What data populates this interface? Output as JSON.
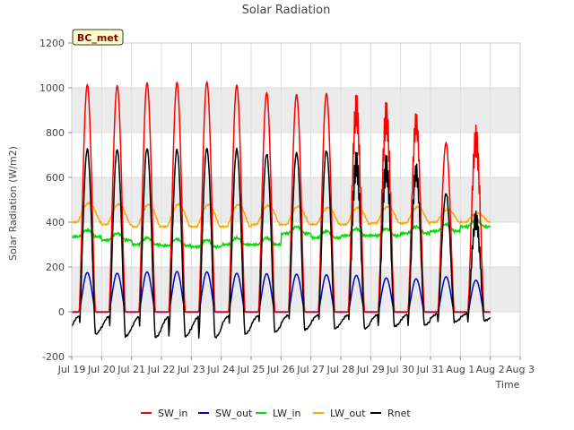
{
  "chart_data": {
    "type": "line",
    "title": "Solar Radiation",
    "xlabel": "Time",
    "ylabel": "Solar Radiation (W/m2)",
    "site_label": "BC_met",
    "ylim": [
      -200,
      1200
    ],
    "xlim_days": [
      0,
      15
    ],
    "y_ticks": [
      -200,
      0,
      200,
      400,
      600,
      800,
      1000,
      1200
    ],
    "x_tick_labels": [
      "Jul 19",
      "Jul 20",
      "Jul 21",
      "Jul 22",
      "Jul 23",
      "Jul 24",
      "Jul 25",
      "Jul 26",
      "Jul 27",
      "Jul 28",
      "Jul 29",
      "Jul 30",
      "Jul 31",
      "Aug 1",
      "Aug 2",
      "Aug 3"
    ],
    "grid": true,
    "legend_position": "bottom",
    "colors": {
      "SW_in": "#ff0000",
      "SW_out": "#0000cc",
      "LW_in": "#00dd00",
      "LW_out": "#ffa500",
      "Rnet": "#000000",
      "band": "#ebebeb",
      "badge_bg": "#ffffcc"
    },
    "series": [
      {
        "name": "SW_in",
        "daily_peak": [
          1015,
          1010,
          1022,
          1025,
          1027,
          1012,
          978,
          970,
          975,
          975,
          957,
          948,
          868,
          900
        ]
      },
      {
        "name": "SW_out",
        "daily_peak": [
          175,
          172,
          178,
          180,
          178,
          172,
          170,
          168,
          165,
          170,
          160,
          158,
          170,
          155
        ]
      },
      {
        "name": "LW_in",
        "daily_level": [
          335,
          320,
          300,
          295,
          290,
          300,
          300,
          350,
          330,
          340,
          340,
          350,
          360,
          380
        ]
      },
      {
        "name": "LW_out",
        "daily_level": [
          400,
          390,
          380,
          380,
          380,
          380,
          390,
          390,
          390,
          390,
          395,
          395,
          400,
          400
        ],
        "daily_peak": [
          485,
          480,
          478,
          480,
          478,
          478,
          475,
          470,
          465,
          465,
          470,
          468,
          455,
          440
        ]
      },
      {
        "name": "Rnet",
        "daily_peak": [
          725,
          725,
          730,
          725,
          730,
          725,
          705,
          710,
          720,
          720,
          715,
          710,
          615,
          490
        ],
        "daily_min": [
          -100,
          -110,
          -115,
          -110,
          -115,
          -100,
          -90,
          -80,
          -75,
          -75,
          -65,
          -60,
          -45,
          -40
        ]
      }
    ]
  }
}
